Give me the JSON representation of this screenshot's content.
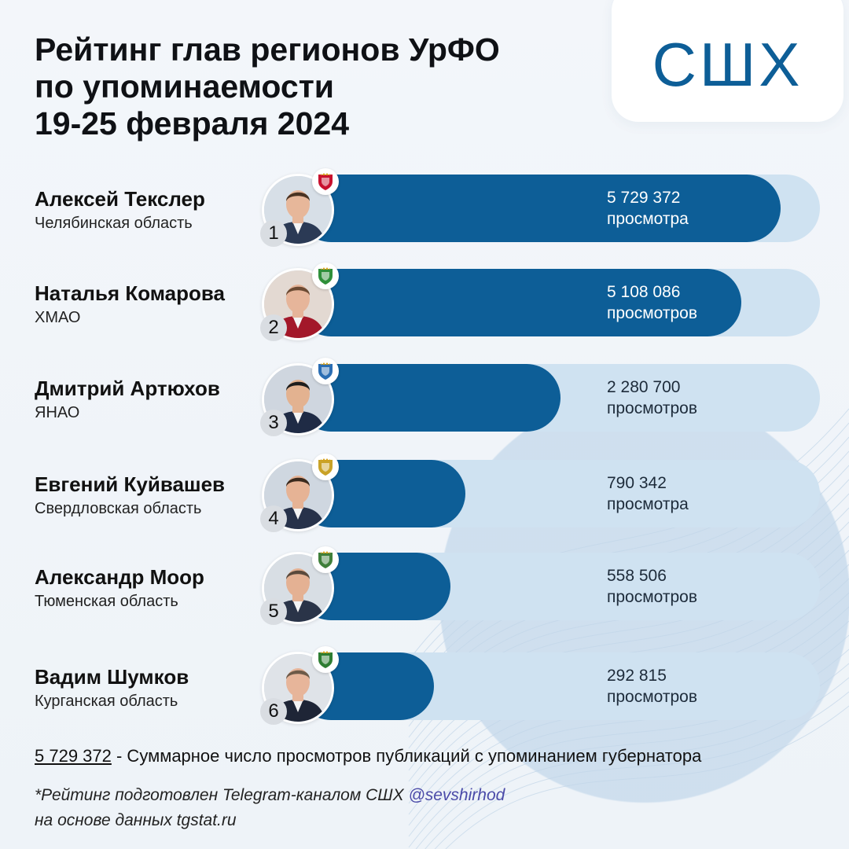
{
  "title": {
    "line1": "Рейтинг глав регионов УрФО",
    "line2": "по упоминаемости",
    "line3": "19-25 февраля 2024"
  },
  "logo": {
    "text": "СШХ",
    "color": "#0d5e97"
  },
  "colors": {
    "bar": "#0d5e97",
    "track": "#cfe2f1",
    "background": "#eef3f8"
  },
  "chart_data": {
    "type": "bar",
    "orientation": "horizontal",
    "categories": [
      "Алексей Текслер",
      "Наталья Комарова",
      "Дмитрий Артюхов",
      "Евгений Куйвашев",
      "Александр Моор",
      "Вадим Шумков"
    ],
    "values": [
      5729372,
      5108086,
      2280700,
      790342,
      558506,
      292815
    ],
    "xlim": [
      0,
      5729372
    ],
    "rows": [
      {
        "rank": "1",
        "name": "Алексей Текслер",
        "region": "Челябинская область",
        "value": 5729372,
        "value_label": "5 729 372",
        "unit_label": "просмотра",
        "emblem_color": "#c8102e",
        "emblem_icon": "chelyabinsk-emblem-icon"
      },
      {
        "rank": "2",
        "name": "Наталья Комарова",
        "region": "ХМАО",
        "value": 5108086,
        "value_label": "5 108 086",
        "unit_label": "просмотров",
        "emblem_color": "#2f8f3a",
        "emblem_icon": "khmao-emblem-icon"
      },
      {
        "rank": "3",
        "name": "Дмитрий Артюхов",
        "region": "ЯНАО",
        "value": 2280700,
        "value_label": "2 280 700",
        "unit_label": "просмотров",
        "emblem_color": "#2a6db3",
        "emblem_icon": "yanao-emblem-icon"
      },
      {
        "rank": "4",
        "name": "Евгений Куйвашев",
        "region": "Свердловская область",
        "value": 790342,
        "value_label": "790 342",
        "unit_label": "просмотра",
        "emblem_color": "#c9a227",
        "emblem_icon": "sverdlovsk-emblem-icon"
      },
      {
        "rank": "5",
        "name": "Александр Моор",
        "region": "Тюменская область",
        "value": 558506,
        "value_label": "558 506",
        "unit_label": "просмотров",
        "emblem_color": "#3f7f3a",
        "emblem_icon": "tyumen-emblem-icon"
      },
      {
        "rank": "6",
        "name": "Вадим Шумков",
        "region": "Курганская область",
        "value": 292815,
        "value_label": "292 815",
        "unit_label": "просмотров",
        "emblem_color": "#2e7d32",
        "emblem_icon": "kurgan-emblem-icon"
      }
    ]
  },
  "footnote": {
    "total": "5 729 372",
    "text": " - Суммарное число просмотров публикаций с упоминанием губернатора"
  },
  "credit": {
    "line1_prefix": "*Рейтинг подготовлен Telegram-каналом СШХ ",
    "handle": "@sevshirhod",
    "line2": "на основе данных tgstat.ru"
  }
}
